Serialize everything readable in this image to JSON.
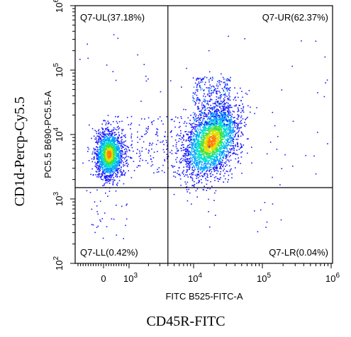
{
  "chart_data": {
    "type": "scatter",
    "plot_kind": "flow-cytometry-density-dot-plot",
    "x_axis": {
      "label": "FITC B525-FITC-A",
      "scale": "biexponential",
      "range": [
        -1000,
        1000000
      ],
      "tick_labels": [
        "0",
        "10^3",
        "10^4",
        "10^5",
        "10^6"
      ]
    },
    "y_axis": {
      "label": "PC5.5 B690-PC5.5-A",
      "scale": "log",
      "range": [
        100,
        1000000
      ],
      "tick_labels": [
        "10^2",
        "10^3",
        "10^4",
        "10^5",
        "10^6"
      ]
    },
    "outer_labels": {
      "x": "CD45R-FITC",
      "y": "CD1d-Percp-Cy5.5"
    },
    "gates": {
      "x_threshold": 4000,
      "y_threshold": 1500
    },
    "quadrants": [
      {
        "id": "UL",
        "label": "Q7-UL(37.18%)",
        "percent": 37.18
      },
      {
        "id": "UR",
        "label": "Q7-UR(62.37%)",
        "percent": 62.37
      },
      {
        "id": "LL",
        "label": "Q7-LL(0.42%)",
        "percent": 0.42
      },
      {
        "id": "LR",
        "label": "Q7-LR(0.04%)",
        "percent": 0.04
      }
    ],
    "populations": [
      {
        "name": "cluster-left",
        "x_center": 200,
        "y_center": 5000,
        "spread_x_log": 0.18,
        "spread_y_log": 0.2
      },
      {
        "name": "cluster-right",
        "x_center": 18000,
        "y_center": 8000,
        "spread_x_log": 0.2,
        "spread_y_log": 0.28
      }
    ],
    "density_colors": [
      "#1a1aff",
      "#00a0ff",
      "#00e0d0",
      "#40e040",
      "#e0e000",
      "#ff8000"
    ],
    "grid": false
  }
}
